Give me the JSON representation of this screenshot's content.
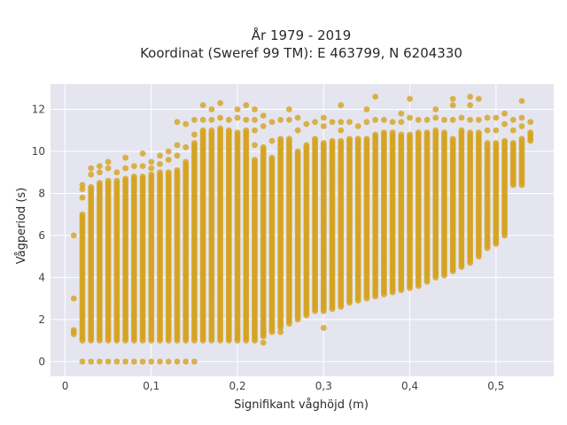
{
  "chart_data": {
    "type": "scatter",
    "title_line1": "År 1979 - 2019",
    "title_line2": "Koordinat (Sweref 99 TM): E 463799, N 6204330",
    "xlabel": "Signifikant våghöjd (m)",
    "ylabel": "Vågperiod (s)",
    "xlim": [
      -0.017,
      0.567
    ],
    "ylim": [
      -0.7,
      13.2
    ],
    "x_ticks": [
      {
        "value": 0,
        "label": "0"
      },
      {
        "value": 0.1,
        "label": "0,1"
      },
      {
        "value": 0.2,
        "label": "0,2"
      },
      {
        "value": 0.3,
        "label": "0,3"
      },
      {
        "value": 0.4,
        "label": "0,4"
      },
      {
        "value": 0.5,
        "label": "0,5"
      }
    ],
    "y_ticks": [
      {
        "value": 0,
        "label": "0"
      },
      {
        "value": 2,
        "label": "2"
      },
      {
        "value": 4,
        "label": "4"
      },
      {
        "value": 6,
        "label": "6"
      },
      {
        "value": 8,
        "label": "8"
      },
      {
        "value": 10,
        "label": "10"
      },
      {
        "value": 12,
        "label": "12"
      }
    ],
    "grid": true,
    "colors": {
      "plot_background": "#e5e5ef",
      "grid": "#ffffff",
      "marker": "#d4a21e"
    },
    "x_step": 0.01,
    "columns": [
      {
        "x": 0.01,
        "ymin": 1.3,
        "ymax": 1.5,
        "outliers": [
          3.0,
          6.0
        ]
      },
      {
        "x": 0.02,
        "ymin": 1.0,
        "ymax": 7.0,
        "outliers": [
          0.0,
          7.8,
          8.2,
          8.4
        ]
      },
      {
        "x": 0.03,
        "ymin": 1.0,
        "ymax": 8.3,
        "outliers": [
          0.0,
          8.9,
          9.2
        ]
      },
      {
        "x": 0.04,
        "ymin": 1.0,
        "ymax": 8.5,
        "outliers": [
          0.0,
          9.0,
          9.3
        ]
      },
      {
        "x": 0.05,
        "ymin": 1.0,
        "ymax": 8.6,
        "outliers": [
          0.0,
          9.2,
          9.5
        ]
      },
      {
        "x": 0.06,
        "ymin": 1.0,
        "ymax": 8.6,
        "outliers": [
          0.0,
          9.0
        ]
      },
      {
        "x": 0.07,
        "ymin": 1.0,
        "ymax": 8.7,
        "outliers": [
          0.0,
          9.2,
          9.7
        ]
      },
      {
        "x": 0.08,
        "ymin": 1.0,
        "ymax": 8.8,
        "outliers": [
          0.0,
          9.3
        ]
      },
      {
        "x": 0.09,
        "ymin": 1.0,
        "ymax": 8.8,
        "outliers": [
          0.0,
          9.3,
          9.9
        ]
      },
      {
        "x": 0.1,
        "ymin": 1.0,
        "ymax": 8.9,
        "outliers": [
          0.0,
          9.2,
          9.5
        ]
      },
      {
        "x": 0.11,
        "ymin": 1.0,
        "ymax": 9.0,
        "outliers": [
          0.0,
          9.4,
          9.8
        ]
      },
      {
        "x": 0.12,
        "ymin": 1.0,
        "ymax": 9.0,
        "outliers": [
          0.0,
          9.6,
          10.0
        ]
      },
      {
        "x": 0.13,
        "ymin": 1.0,
        "ymax": 9.1,
        "outliers": [
          0.0,
          9.8,
          10.3,
          11.4
        ]
      },
      {
        "x": 0.14,
        "ymin": 1.0,
        "ymax": 9.5,
        "outliers": [
          0.0,
          10.2,
          11.3
        ]
      },
      {
        "x": 0.15,
        "ymin": 1.0,
        "ymax": 10.4,
        "outliers": [
          0.0,
          10.8,
          11.5
        ]
      },
      {
        "x": 0.16,
        "ymin": 1.0,
        "ymax": 11.0,
        "outliers": [
          11.5,
          12.2
        ]
      },
      {
        "x": 0.17,
        "ymin": 1.0,
        "ymax": 11.0,
        "outliers": [
          11.5,
          12.0
        ]
      },
      {
        "x": 0.18,
        "ymin": 1.0,
        "ymax": 11.1,
        "outliers": [
          11.6,
          12.3
        ]
      },
      {
        "x": 0.19,
        "ymin": 1.0,
        "ymax": 11.0,
        "outliers": [
          11.5
        ]
      },
      {
        "x": 0.2,
        "ymin": 1.0,
        "ymax": 10.9,
        "outliers": [
          11.6,
          12.0
        ]
      },
      {
        "x": 0.21,
        "ymin": 1.0,
        "ymax": 11.0,
        "outliers": [
          11.5,
          12.2
        ]
      },
      {
        "x": 0.22,
        "ymin": 1.0,
        "ymax": 9.6,
        "outliers": [
          10.3,
          11.0,
          11.5,
          12.0
        ]
      },
      {
        "x": 0.23,
        "ymin": 1.2,
        "ymax": 10.2,
        "outliers": [
          0.9,
          1.4,
          11.2,
          11.7
        ]
      },
      {
        "x": 0.24,
        "ymin": 1.4,
        "ymax": 9.7,
        "outliers": [
          10.5,
          11.4
        ]
      },
      {
        "x": 0.25,
        "ymin": 1.6,
        "ymax": 10.6,
        "outliers": [
          1.4,
          11.5
        ]
      },
      {
        "x": 0.26,
        "ymin": 1.8,
        "ymax": 10.6,
        "outliers": [
          11.5,
          12.0
        ]
      },
      {
        "x": 0.27,
        "ymin": 2.0,
        "ymax": 10.0,
        "outliers": [
          11.0,
          11.6
        ]
      },
      {
        "x": 0.28,
        "ymin": 2.2,
        "ymax": 10.3,
        "outliers": [
          11.3
        ]
      },
      {
        "x": 0.29,
        "ymin": 2.4,
        "ymax": 10.6,
        "outliers": [
          11.4
        ]
      },
      {
        "x": 0.3,
        "ymin": 2.4,
        "ymax": 10.4,
        "outliers": [
          1.6,
          11.2,
          11.6
        ]
      },
      {
        "x": 0.31,
        "ymin": 2.5,
        "ymax": 10.5,
        "outliers": [
          11.4
        ]
      },
      {
        "x": 0.32,
        "ymin": 2.6,
        "ymax": 10.5,
        "outliers": [
          11.0,
          11.4,
          12.2
        ]
      },
      {
        "x": 0.33,
        "ymin": 2.8,
        "ymax": 10.6,
        "outliers": [
          11.4
        ]
      },
      {
        "x": 0.34,
        "ymin": 2.9,
        "ymax": 10.6,
        "outliers": [
          11.2
        ]
      },
      {
        "x": 0.35,
        "ymin": 3.0,
        "ymax": 10.6,
        "outliers": [
          11.4,
          12.0
        ]
      },
      {
        "x": 0.36,
        "ymin": 3.1,
        "ymax": 10.8,
        "outliers": [
          11.5,
          12.6
        ]
      },
      {
        "x": 0.37,
        "ymin": 3.2,
        "ymax": 10.9,
        "outliers": [
          11.5
        ]
      },
      {
        "x": 0.38,
        "ymin": 3.3,
        "ymax": 10.9,
        "outliers": [
          11.4
        ]
      },
      {
        "x": 0.39,
        "ymin": 3.4,
        "ymax": 10.8,
        "outliers": [
          11.4,
          11.8
        ]
      },
      {
        "x": 0.4,
        "ymin": 3.5,
        "ymax": 10.8,
        "outliers": [
          11.6,
          12.5
        ]
      },
      {
        "x": 0.41,
        "ymin": 3.6,
        "ymax": 10.9,
        "outliers": [
          11.5
        ]
      },
      {
        "x": 0.42,
        "ymin": 3.8,
        "ymax": 10.9,
        "outliers": [
          11.5
        ]
      },
      {
        "x": 0.43,
        "ymin": 4.0,
        "ymax": 11.0,
        "outliers": [
          11.6,
          12.0
        ]
      },
      {
        "x": 0.44,
        "ymin": 4.1,
        "ymax": 10.9,
        "outliers": [
          11.5
        ]
      },
      {
        "x": 0.45,
        "ymin": 4.3,
        "ymax": 10.6,
        "outliers": [
          11.5,
          12.2,
          12.5
        ]
      },
      {
        "x": 0.46,
        "ymin": 4.5,
        "ymax": 11.0,
        "outliers": [
          11.6
        ]
      },
      {
        "x": 0.47,
        "ymin": 4.7,
        "ymax": 10.9,
        "outliers": [
          11.5,
          12.2,
          12.6
        ]
      },
      {
        "x": 0.48,
        "ymin": 5.0,
        "ymax": 10.9,
        "outliers": [
          11.5,
          12.5
        ]
      },
      {
        "x": 0.49,
        "ymin": 5.4,
        "ymax": 10.4,
        "outliers": [
          11.0,
          11.6
        ]
      },
      {
        "x": 0.5,
        "ymin": 5.6,
        "ymax": 10.4,
        "outliers": [
          11.0,
          11.6
        ]
      },
      {
        "x": 0.51,
        "ymin": 6.0,
        "ymax": 10.5,
        "outliers": [
          11.3,
          11.8
        ]
      },
      {
        "x": 0.52,
        "ymin": 8.4,
        "ymax": 10.4,
        "outliers": [
          11.0,
          11.5
        ]
      },
      {
        "x": 0.53,
        "ymin": 8.4,
        "ymax": 10.6,
        "outliers": [
          11.2,
          11.6,
          12.4
        ]
      },
      {
        "x": 0.54,
        "ymin": 10.5,
        "ymax": 10.9,
        "outliers": [
          11.4
        ]
      }
    ]
  }
}
